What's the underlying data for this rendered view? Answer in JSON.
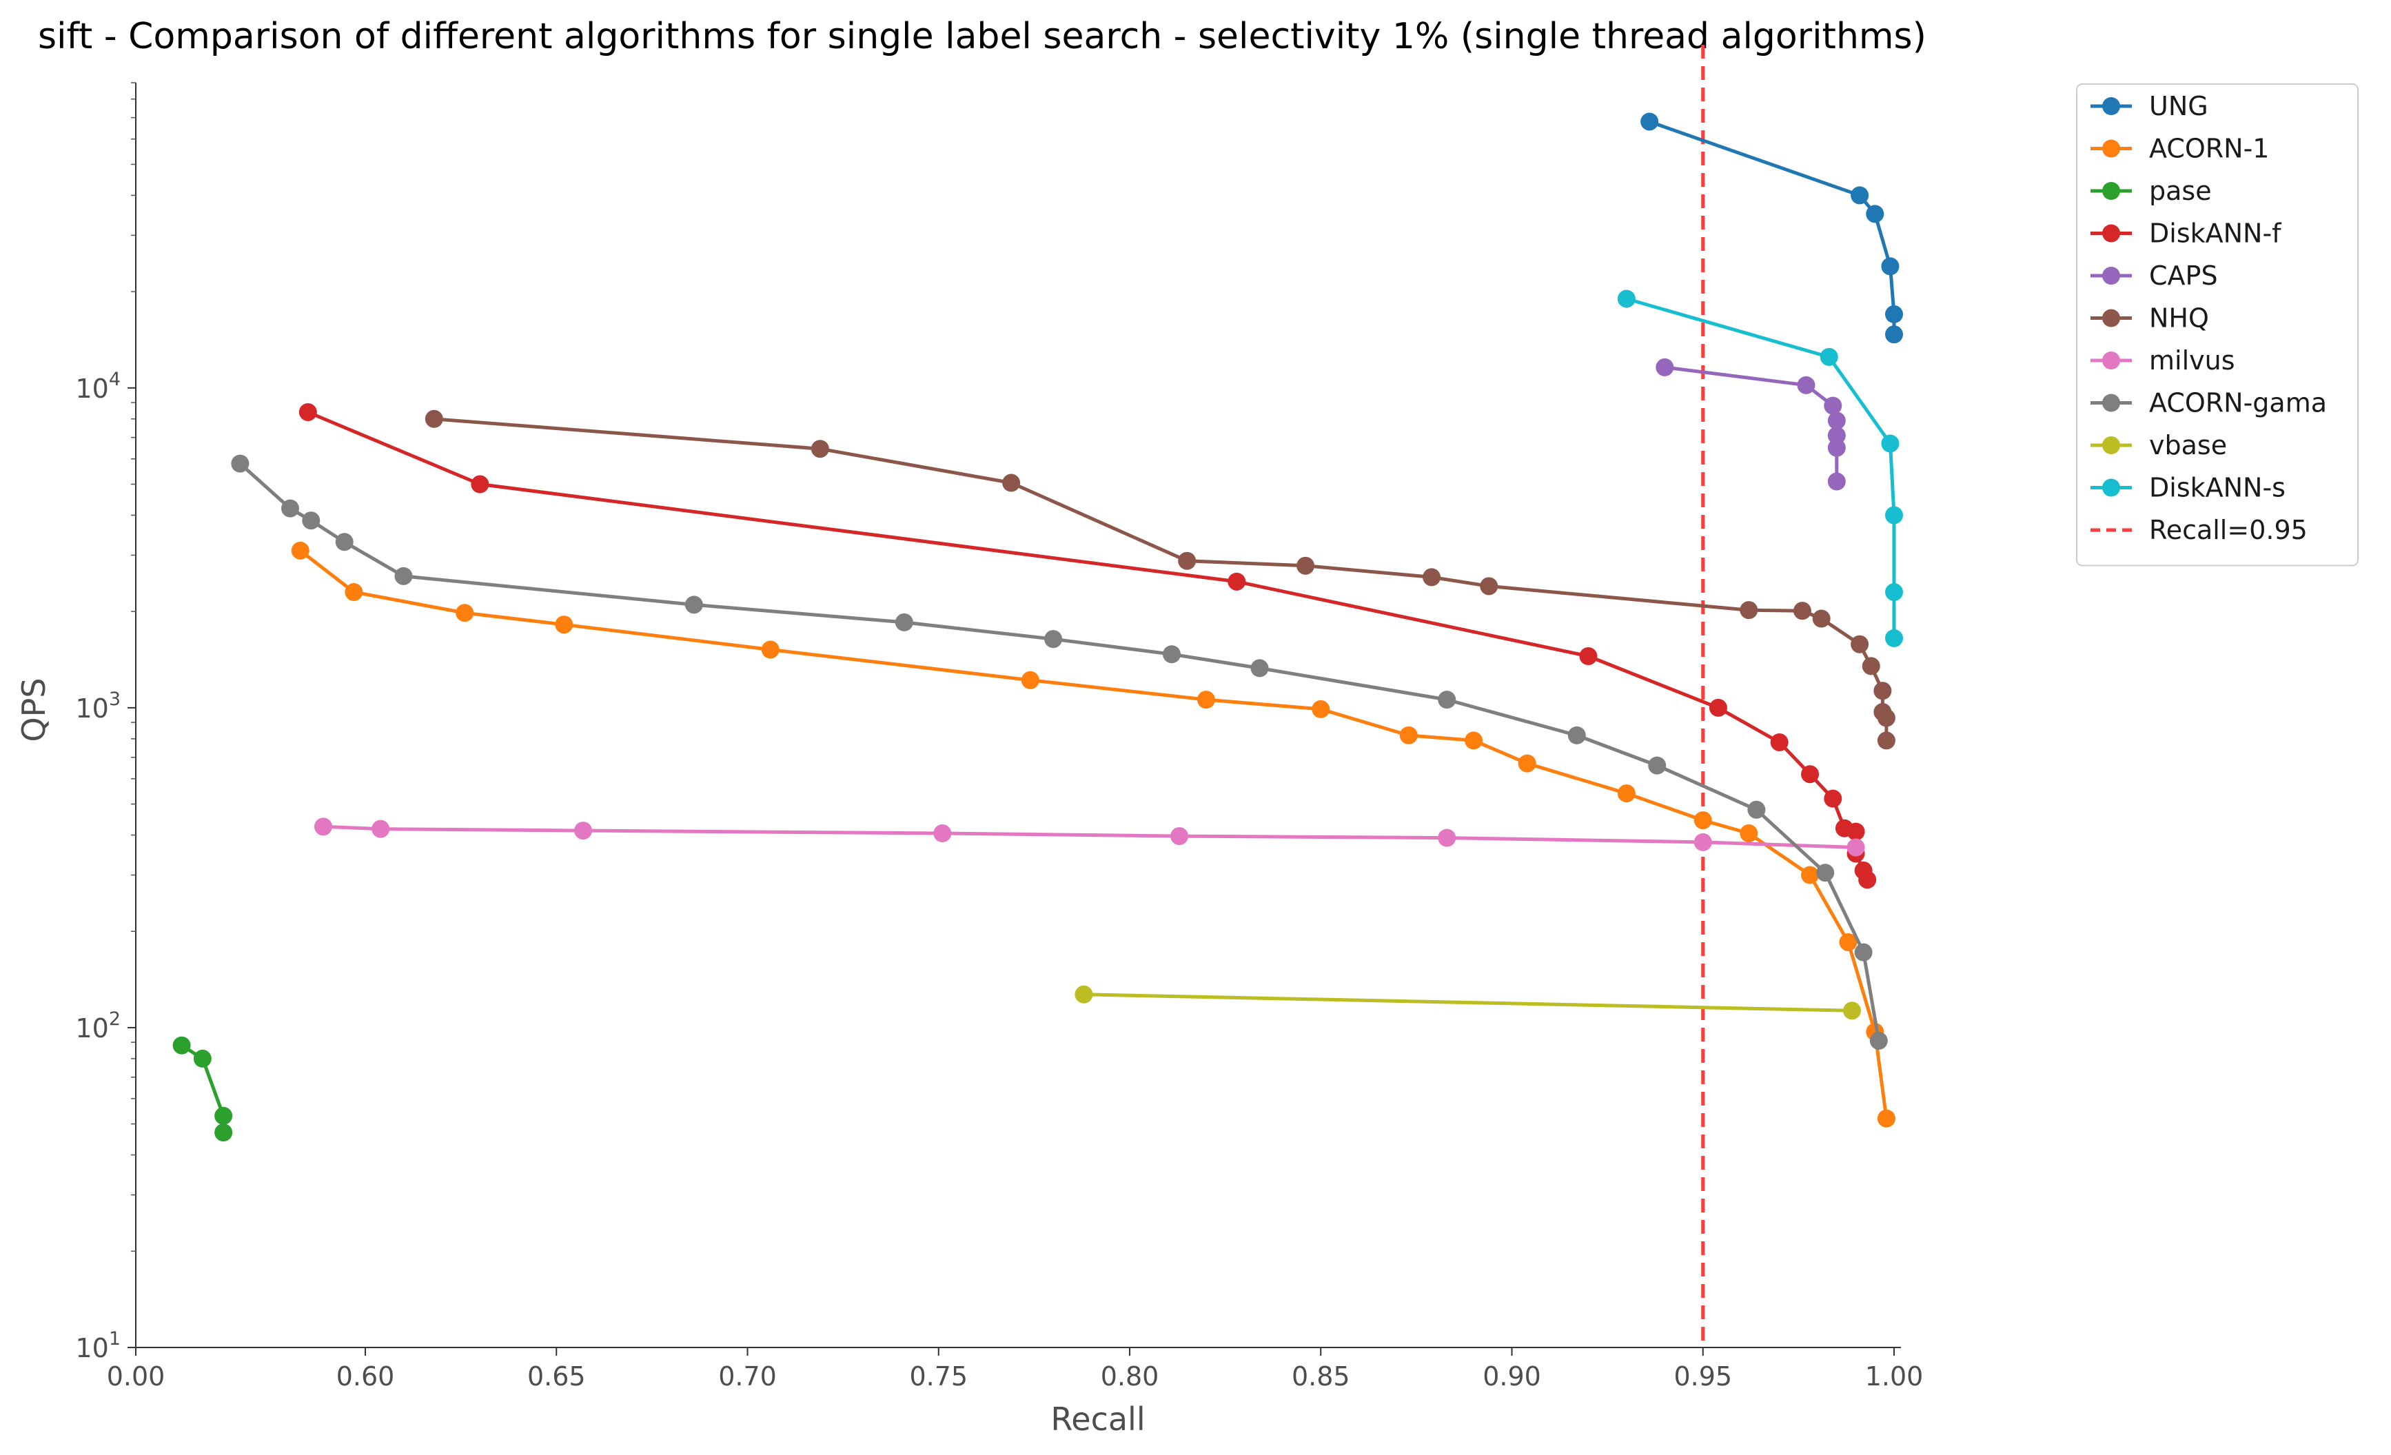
{
  "chart_data": {
    "type": "line",
    "title": "sift - Comparison of different algorithms for single label search - selectivity 1% (single thread algorithms)",
    "xlabel": "Recall",
    "ylabel": "QPS",
    "yscale": "log",
    "ylim": [
      10,
      90000
    ],
    "x_axis": {
      "note": "broken axis: 0.00 then 0.55 to 1.00",
      "tick_values": [
        0.0,
        0.6,
        0.65,
        0.7,
        0.75,
        0.8,
        0.85,
        0.9,
        0.95,
        1.0
      ],
      "tick_labels": [
        "0.00",
        "0.60",
        "0.65",
        "0.70",
        "0.75",
        "0.80",
        "0.85",
        "0.90",
        "0.95",
        "1.00"
      ]
    },
    "y_axis": {
      "tick_values": [
        10,
        100,
        1000,
        10000
      ],
      "tick_labels": [
        {
          "base": "10",
          "exp": "1"
        },
        {
          "base": "10",
          "exp": "2"
        },
        {
          "base": "10",
          "exp": "3"
        },
        {
          "base": "10",
          "exp": "4"
        }
      ]
    },
    "grid": false,
    "legend_position": "top-right (outside plot)",
    "series": [
      {
        "name": "UNG",
        "color": "#1f77b4",
        "points": [
          [
            0.936,
            68000
          ],
          [
            0.991,
            40000
          ],
          [
            0.995,
            35000
          ],
          [
            0.999,
            24000
          ],
          [
            1.0,
            17000
          ],
          [
            1.0,
            14700
          ]
        ]
      },
      {
        "name": "ACORN-1",
        "color": "#ff7f0e",
        "points": [
          [
            0.583,
            3100
          ],
          [
            0.597,
            2300
          ],
          [
            0.626,
            1980
          ],
          [
            0.652,
            1820
          ],
          [
            0.706,
            1520
          ],
          [
            0.774,
            1220
          ],
          [
            0.82,
            1060
          ],
          [
            0.85,
            990
          ],
          [
            0.873,
            820
          ],
          [
            0.89,
            790
          ],
          [
            0.904,
            670
          ],
          [
            0.93,
            540
          ],
          [
            0.95,
            445
          ],
          [
            0.962,
            405
          ],
          [
            0.978,
            300
          ],
          [
            0.988,
            185
          ],
          [
            0.995,
            97
          ],
          [
            0.998,
            52
          ]
        ]
      },
      {
        "name": "pase",
        "color": "#2ca02c",
        "points": [
          [
            0.011,
            88
          ],
          [
            0.016,
            80
          ],
          [
            0.021,
            53
          ],
          [
            0.021,
            47
          ]
        ]
      },
      {
        "name": "DiskANN-f",
        "color": "#d62728",
        "points": [
          [
            0.585,
            8400
          ],
          [
            0.63,
            5000
          ],
          [
            0.828,
            2480
          ],
          [
            0.92,
            1450
          ],
          [
            0.954,
            1000
          ],
          [
            0.97,
            780
          ],
          [
            0.978,
            620
          ],
          [
            0.984,
            520
          ],
          [
            0.987,
            420
          ],
          [
            0.99,
            410
          ],
          [
            0.99,
            350
          ],
          [
            0.992,
            310
          ],
          [
            0.993,
            290
          ]
        ]
      },
      {
        "name": "CAPS",
        "color": "#9467bd",
        "points": [
          [
            0.94,
            11600
          ],
          [
            0.977,
            10200
          ],
          [
            0.984,
            8800
          ],
          [
            0.985,
            7900
          ],
          [
            0.985,
            7100
          ],
          [
            0.985,
            6500
          ],
          [
            0.985,
            5100
          ]
        ]
      },
      {
        "name": "NHQ",
        "color": "#8c564b",
        "points": [
          [
            0.618,
            8000
          ],
          [
            0.719,
            6450
          ],
          [
            0.769,
            5050
          ],
          [
            0.815,
            2880
          ],
          [
            0.846,
            2780
          ],
          [
            0.879,
            2560
          ],
          [
            0.894,
            2400
          ],
          [
            0.962,
            2020
          ],
          [
            0.976,
            2010
          ],
          [
            0.981,
            1900
          ],
          [
            0.991,
            1580
          ],
          [
            0.994,
            1350
          ],
          [
            0.997,
            1130
          ],
          [
            0.997,
            970
          ],
          [
            0.998,
            930
          ],
          [
            0.998,
            790
          ]
        ]
      },
      {
        "name": "milvus",
        "color": "#e377c2",
        "points": [
          [
            0.589,
            425
          ],
          [
            0.604,
            418
          ],
          [
            0.657,
            413
          ],
          [
            0.751,
            405
          ],
          [
            0.813,
            397
          ],
          [
            0.883,
            392
          ],
          [
            0.95,
            380
          ],
          [
            0.99,
            366
          ]
        ]
      },
      {
        "name": "ACORN-gama",
        "color": "#7f7f7f",
        "points": [
          [
            0.025,
            5800
          ],
          [
            0.037,
            4200
          ],
          [
            0.042,
            3850
          ],
          [
            0.05,
            3300
          ],
          [
            0.61,
            2580
          ],
          [
            0.686,
            2100
          ],
          [
            0.741,
            1850
          ],
          [
            0.78,
            1640
          ],
          [
            0.811,
            1470
          ],
          [
            0.834,
            1330
          ],
          [
            0.883,
            1060
          ],
          [
            0.917,
            820
          ],
          [
            0.938,
            660
          ],
          [
            0.964,
            480
          ],
          [
            0.982,
            305
          ],
          [
            0.992,
            172
          ],
          [
            0.996,
            91
          ]
        ]
      },
      {
        "name": "vbase",
        "color": "#bcbd22",
        "points": [
          [
            0.788,
            127
          ],
          [
            0.989,
            113
          ]
        ]
      },
      {
        "name": "DiskANN-s",
        "color": "#17becf",
        "points": [
          [
            0.93,
            19000
          ],
          [
            0.983,
            12500
          ],
          [
            0.999,
            6700
          ],
          [
            1.0,
            4000
          ],
          [
            1.0,
            2300
          ],
          [
            1.0,
            1650
          ]
        ]
      }
    ],
    "reference_line": {
      "name": "Recall=0.95",
      "x": 0.95,
      "color": "#ff3b3b"
    }
  }
}
